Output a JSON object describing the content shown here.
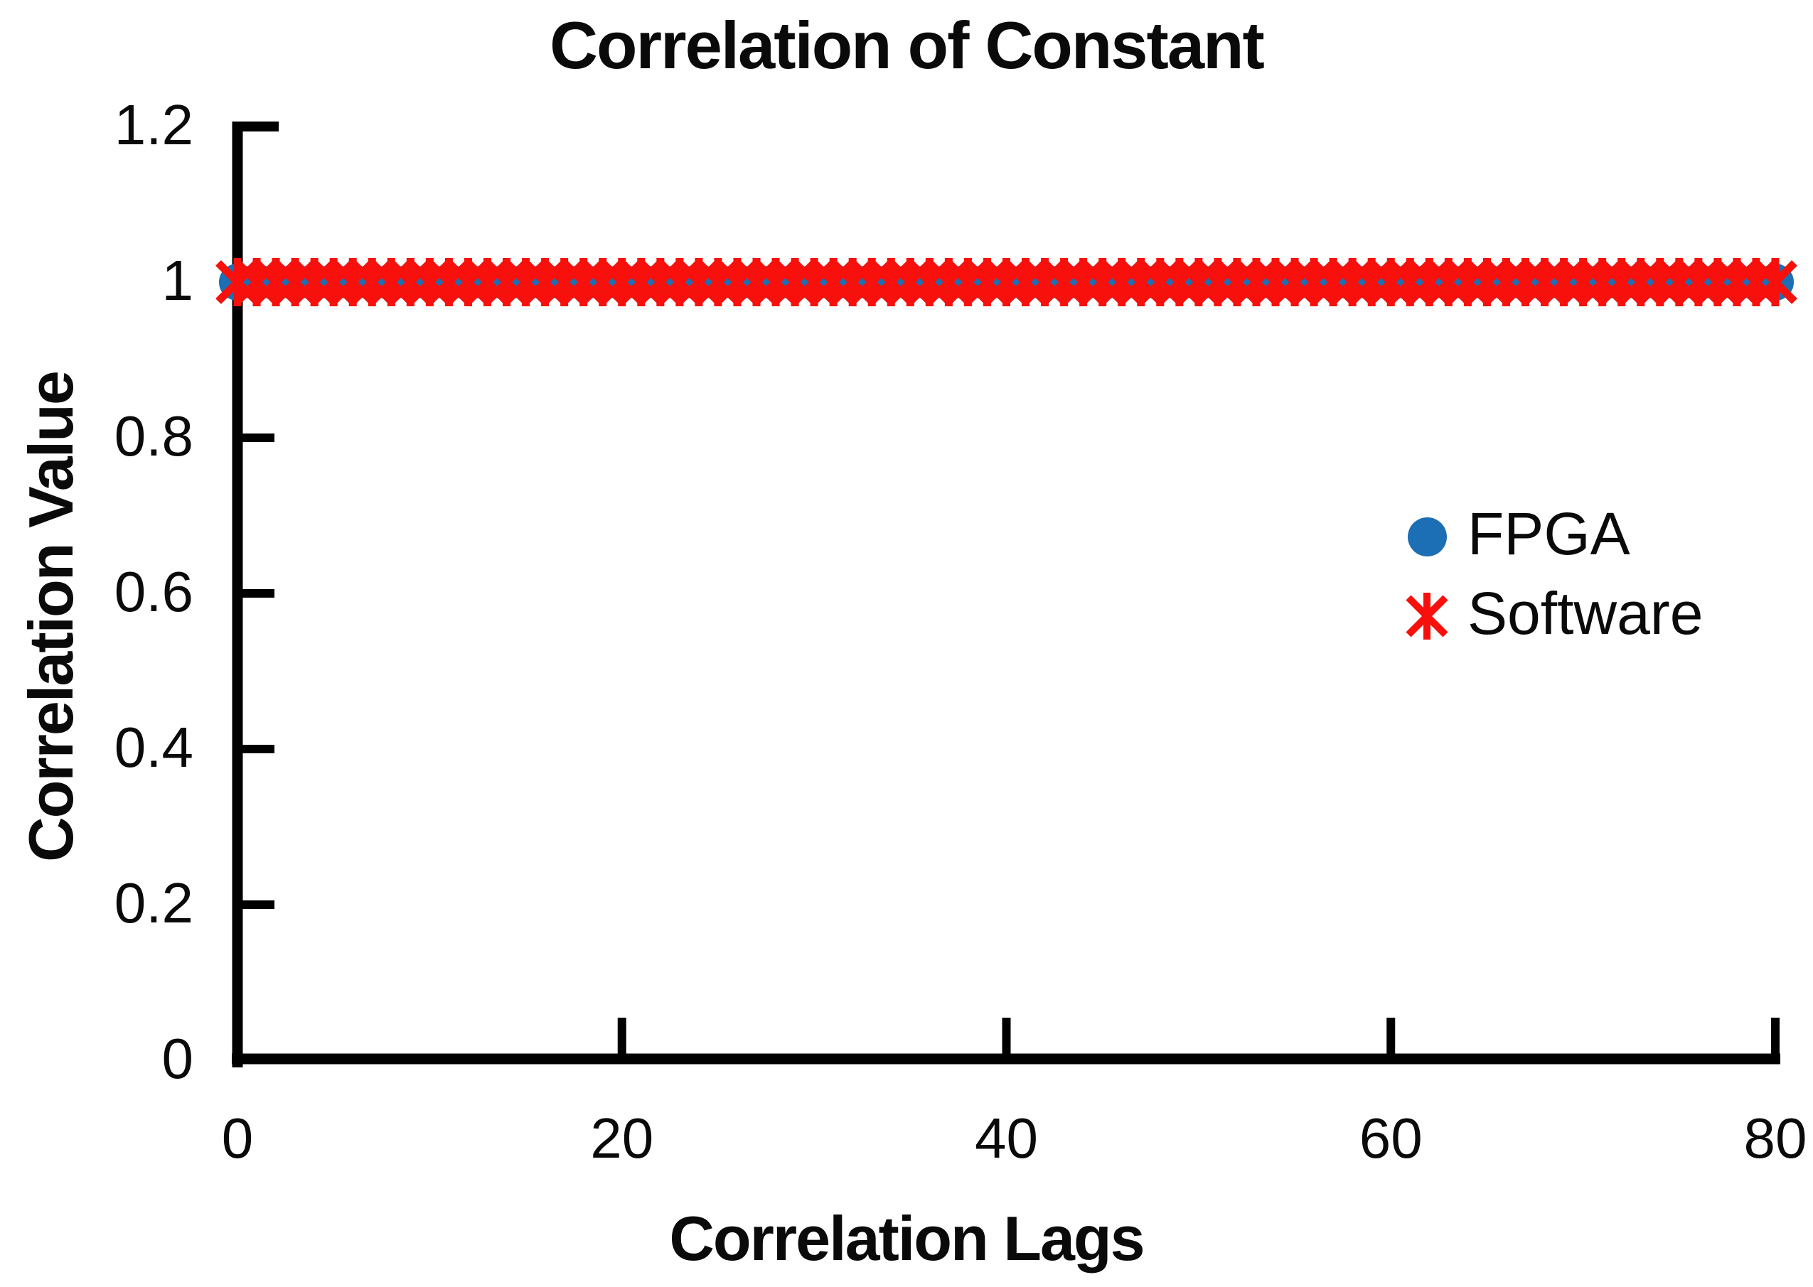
{
  "chart_data": {
    "type": "scatter",
    "title": "Correlation of Constant",
    "xlabel": "Correlation Lags",
    "ylabel": "Correlation Value",
    "xlim": [
      0,
      80
    ],
    "ylim": [
      0,
      1.2
    ],
    "x_ticks": [
      0,
      20,
      40,
      60,
      80
    ],
    "x_tick_labels": [
      "0",
      "20",
      "40",
      "60",
      "80"
    ],
    "y_ticks": [
      1.2,
      1,
      0.8,
      0.6,
      0.4,
      0.2,
      0
    ],
    "y_tick_labels": [
      "1.2",
      "1",
      "0.8",
      "0.6",
      "0.4",
      "0.2",
      "0"
    ],
    "grid": false,
    "legend_position": "right-middle",
    "axis_color": "#000000",
    "x": [
      0,
      1,
      2,
      3,
      4,
      5,
      6,
      7,
      8,
      9,
      10,
      11,
      12,
      13,
      14,
      15,
      16,
      17,
      18,
      19,
      20,
      21,
      22,
      23,
      24,
      25,
      26,
      27,
      28,
      29,
      30,
      31,
      32,
      33,
      34,
      35,
      36,
      37,
      38,
      39,
      40,
      41,
      42,
      43,
      44,
      45,
      46,
      47,
      48,
      49,
      50,
      51,
      52,
      53,
      54,
      55,
      56,
      57,
      58,
      59,
      60,
      61,
      62,
      63,
      64,
      65,
      66,
      67,
      68,
      69,
      70,
      71,
      72,
      73,
      74,
      75,
      76,
      77,
      78,
      79,
      80
    ],
    "series": [
      {
        "name": "FPGA",
        "marker": "circle",
        "color": "#1c6fb5",
        "y": [
          1,
          1,
          1,
          1,
          1,
          1,
          1,
          1,
          1,
          1,
          1,
          1,
          1,
          1,
          1,
          1,
          1,
          1,
          1,
          1,
          1,
          1,
          1,
          1,
          1,
          1,
          1,
          1,
          1,
          1,
          1,
          1,
          1,
          1,
          1,
          1,
          1,
          1,
          1,
          1,
          1,
          1,
          1,
          1,
          1,
          1,
          1,
          1,
          1,
          1,
          1,
          1,
          1,
          1,
          1,
          1,
          1,
          1,
          1,
          1,
          1,
          1,
          1,
          1,
          1,
          1,
          1,
          1,
          1,
          1,
          1,
          1,
          1,
          1,
          1,
          1,
          1,
          1,
          1,
          1,
          1
        ]
      },
      {
        "name": "Software",
        "marker": "asterisk",
        "color": "#f7100c",
        "y": [
          1,
          1,
          1,
          1,
          1,
          1,
          1,
          1,
          1,
          1,
          1,
          1,
          1,
          1,
          1,
          1,
          1,
          1,
          1,
          1,
          1,
          1,
          1,
          1,
          1,
          1,
          1,
          1,
          1,
          1,
          1,
          1,
          1,
          1,
          1,
          1,
          1,
          1,
          1,
          1,
          1,
          1,
          1,
          1,
          1,
          1,
          1,
          1,
          1,
          1,
          1,
          1,
          1,
          1,
          1,
          1,
          1,
          1,
          1,
          1,
          1,
          1,
          1,
          1,
          1,
          1,
          1,
          1,
          1,
          1,
          1,
          1,
          1,
          1,
          1,
          1,
          1,
          1,
          1,
          1,
          1
        ]
      }
    ]
  },
  "legend": {
    "items": [
      {
        "label": "FPGA"
      },
      {
        "label": "Software"
      }
    ]
  }
}
